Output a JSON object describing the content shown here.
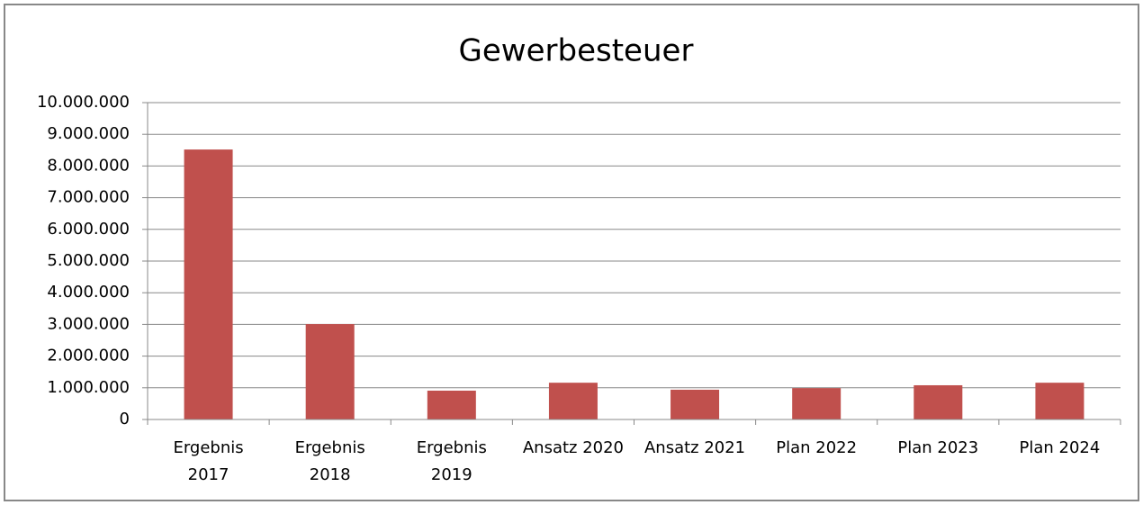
{
  "chart_data": {
    "type": "bar",
    "title": "Gewerbesteuer",
    "categories": [
      "Ergebnis\n2017",
      "Ergebnis\n2018",
      "Ergebnis\n2019",
      "Ansatz 2020",
      "Ansatz 2021",
      "Plan 2022",
      "Plan 2023",
      "Plan 2024"
    ],
    "values": [
      8520000,
      3010000,
      910000,
      1160000,
      940000,
      990000,
      1080000,
      1160000
    ],
    "color": "#c0504d",
    "ylim": [
      0,
      10000000
    ],
    "yticks": [
      0,
      {
        "value": 1000000,
        "label": "1.000.000"
      },
      {
        "value": 2000000,
        "label": "2.000.000"
      },
      {
        "value": 3000000,
        "label": "3.000.000"
      },
      {
        "value": 4000000,
        "label": "4.000.000"
      },
      {
        "value": 5000000,
        "label": "5.000.000"
      },
      {
        "value": 6000000,
        "label": "6.000.000"
      },
      {
        "value": 7000000,
        "label": "7.000.000"
      },
      {
        "value": 8000000,
        "label": "8.000.000"
      },
      {
        "value": 9000000,
        "label": "9.000.000"
      },
      {
        "value": 10000000,
        "label": "10.000.000"
      }
    ],
    "grid": true
  }
}
